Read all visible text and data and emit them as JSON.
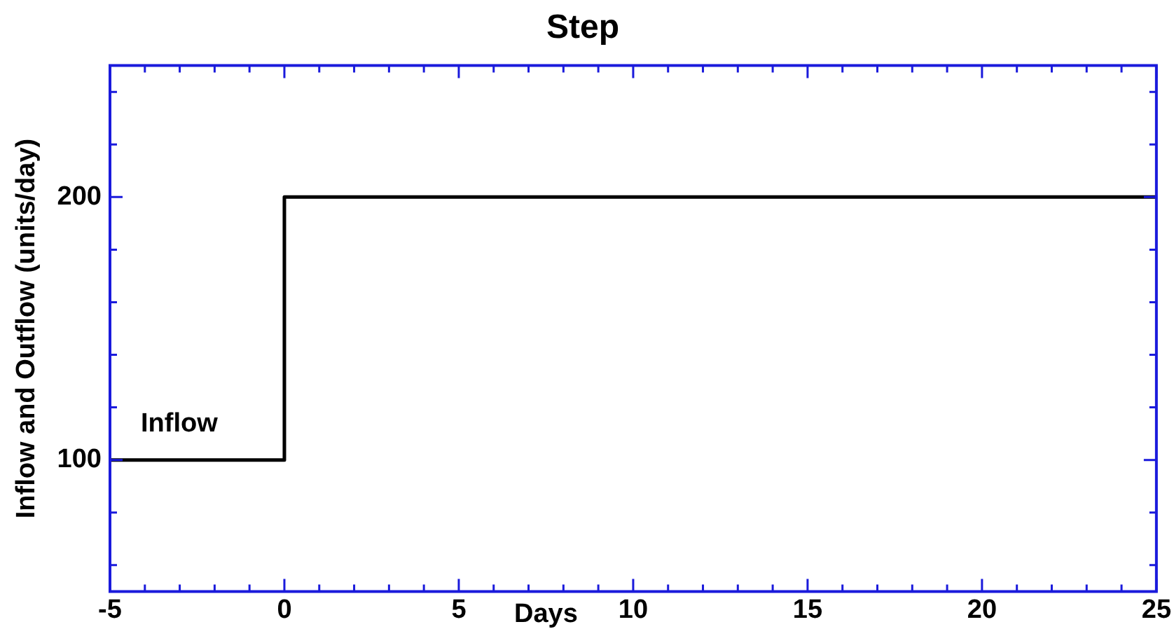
{
  "chart_data": {
    "type": "step",
    "title": "Step",
    "xlabel": "Days",
    "ylabel": "Inflow and Outflow (units/day)",
    "xlim": [
      -5,
      25
    ],
    "xticks": [
      -5,
      {
        "value": -4,
        "label": null
      },
      {
        "value": -3,
        "label": null
      },
      {
        "value": -2,
        "label": null
      },
      {
        "value": -1,
        "label": null
      },
      0,
      {
        "value": 1,
        "label": null
      },
      {
        "value": 2,
        "label": null
      },
      {
        "value": 3,
        "label": null
      },
      {
        "value": 4,
        "label": null
      },
      5,
      {
        "value": 6,
        "label": null
      },
      {
        "value": 7,
        "label": null
      },
      {
        "value": 8,
        "label": null
      },
      {
        "value": 9,
        "label": null
      },
      10,
      {
        "value": 11,
        "label": null
      },
      {
        "value": 12,
        "label": null
      },
      {
        "value": 13,
        "label": null
      },
      {
        "value": 14,
        "label": null
      },
      15,
      {
        "value": 16,
        "label": null
      },
      {
        "value": 17,
        "label": null
      },
      {
        "value": 18,
        "label": null
      },
      {
        "value": 19,
        "label": null
      },
      20,
      {
        "value": 21,
        "label": null
      },
      {
        "value": 22,
        "label": null
      },
      {
        "value": 23,
        "label": null
      },
      {
        "value": 24,
        "label": null
      },
      25
    ],
    "ylim": [
      50,
      250
    ],
    "yticks": [
      {
        "value": 60,
        "label": null
      },
      {
        "value": 80,
        "label": null
      },
      100,
      {
        "value": 120,
        "label": null
      },
      {
        "value": 140,
        "label": null
      },
      {
        "value": 160,
        "label": null
      },
      {
        "value": 180,
        "label": null
      },
      200,
      {
        "value": 220,
        "label": null
      },
      {
        "value": 240,
        "label": null
      }
    ],
    "grid": false,
    "legend": false,
    "series": [
      {
        "name": "Inflow",
        "color": "#000000",
        "x": [
          -5,
          0,
          25
        ],
        "values": [
          100,
          200,
          200
        ]
      }
    ]
  }
}
